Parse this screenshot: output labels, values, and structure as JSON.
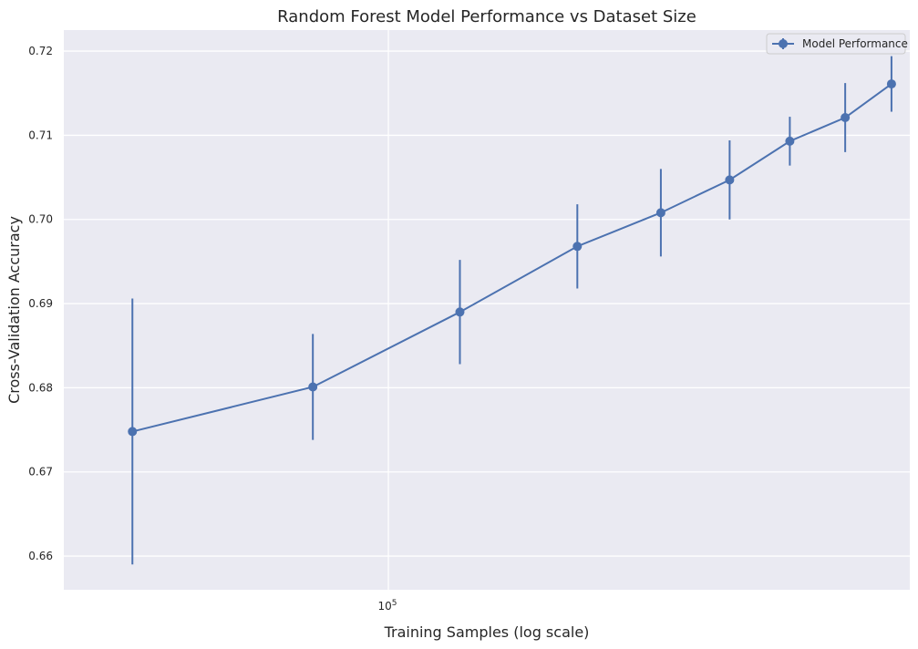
{
  "chart_data": {
    "type": "line",
    "title": "Random Forest Model Performance vs Dataset Size",
    "xlabel": "Training Samples (log scale)",
    "ylabel": "Cross-Validation Accuracy",
    "x_scale": "log",
    "x_ticks": [
      {
        "value": 100000,
        "base": "10",
        "exp": "5"
      }
    ],
    "ylim": [
      0.656,
      0.7225
    ],
    "y_ticks": [
      0.66,
      0.67,
      0.68,
      0.69,
      0.7,
      0.71,
      0.72
    ],
    "y_tick_labels": [
      "0.66",
      "0.67",
      "0.68",
      "0.69",
      "0.70",
      "0.71",
      "0.72"
    ],
    "grid": true,
    "legend_position": "top-right",
    "series": [
      {
        "name": "Model Performance",
        "color": "#4c72b0",
        "x": [
          58800,
          85500,
          116000,
          148000,
          176000,
          203000,
          230000,
          258000,
          284000
        ],
        "y": [
          0.6748,
          0.6801,
          0.689,
          0.6968,
          0.7008,
          0.7047,
          0.7093,
          0.7121,
          0.7161
        ],
        "yerr": [
          0.0158,
          0.0063,
          0.0062,
          0.005,
          0.0052,
          0.0047,
          0.0029,
          0.0041,
          0.0033
        ]
      }
    ]
  },
  "colors": {
    "background": "#ffffff",
    "plot_background": "#eaeaf2",
    "grid": "#ffffff",
    "text": "#262626"
  }
}
